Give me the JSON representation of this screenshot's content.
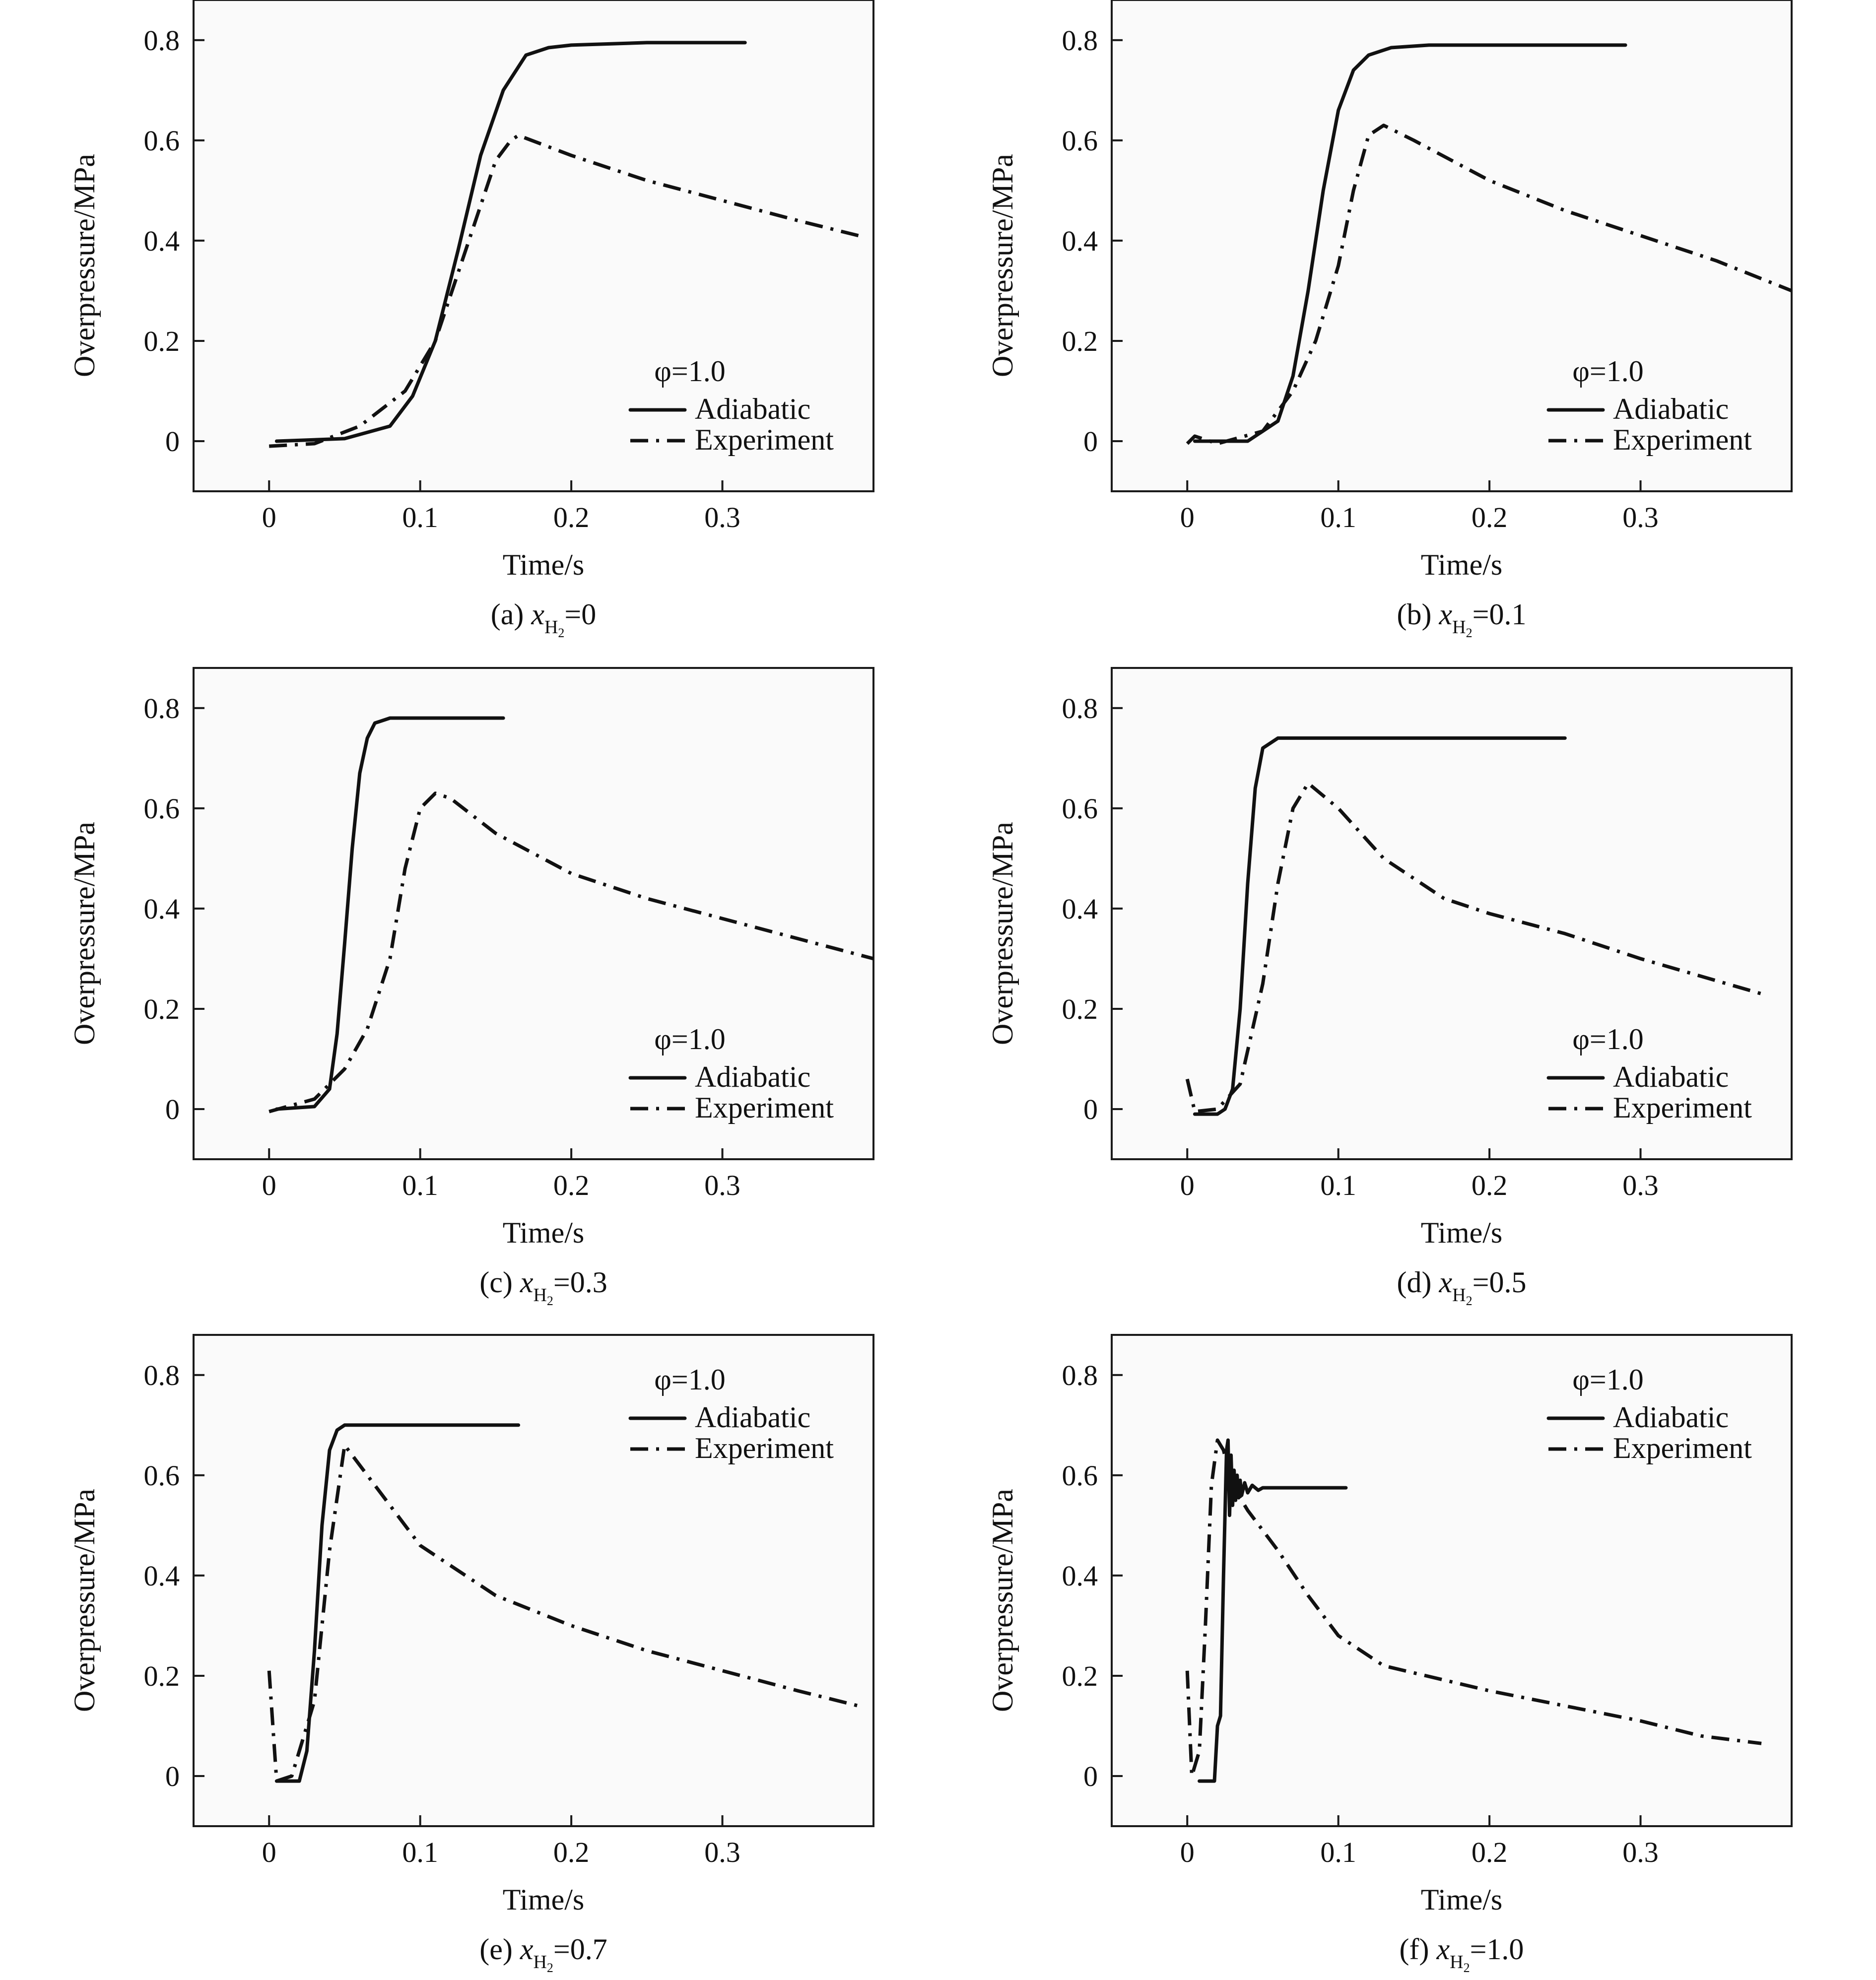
{
  "chart_data": [
    {
      "type": "line",
      "caption": {
        "prefix": "(a) ",
        "var": "x",
        "sub": "H",
        "subsub": "2",
        "value": "=0"
      },
      "xlabel": "Time/s",
      "ylabel": "Overpressure/MPa",
      "xlim": [
        -0.05,
        0.4
      ],
      "ylim": [
        -0.1,
        0.88
      ],
      "xticks": [
        0,
        0.1,
        0.2,
        0.3
      ],
      "xtick_labels": [
        "0",
        "0.1",
        "0.2",
        "0.3"
      ],
      "yticks": [
        0,
        0.2,
        0.4,
        0.6,
        0.8
      ],
      "ytick_labels": [
        "0",
        "0.2",
        "0.4",
        "0.6",
        "0.8"
      ],
      "legend": {
        "title": "φ=1.0",
        "placement": "lower-right",
        "entries": [
          "Adiabatic",
          "Experiment"
        ]
      },
      "series": [
        {
          "name": "Adiabatic",
          "style": "solid",
          "x": [
            0.005,
            0.05,
            0.08,
            0.095,
            0.11,
            0.125,
            0.14,
            0.155,
            0.17,
            0.185,
            0.2,
            0.25,
            0.315
          ],
          "y": [
            0.0,
            0.005,
            0.03,
            0.09,
            0.2,
            0.38,
            0.57,
            0.7,
            0.77,
            0.785,
            0.79,
            0.795,
            0.795
          ]
        },
        {
          "name": "Experiment",
          "style": "dashdot",
          "x": [
            0.0,
            0.03,
            0.06,
            0.09,
            0.11,
            0.13,
            0.15,
            0.16,
            0.165,
            0.2,
            0.25,
            0.3,
            0.35,
            0.39
          ],
          "y": [
            -0.01,
            -0.005,
            0.03,
            0.1,
            0.2,
            0.38,
            0.56,
            0.6,
            0.61,
            0.57,
            0.52,
            0.48,
            0.44,
            0.41
          ]
        }
      ]
    },
    {
      "type": "line",
      "caption": {
        "prefix": "(b) ",
        "var": "x",
        "sub": "H",
        "subsub": "2",
        "value": "=0.1"
      },
      "xlabel": "Time/s",
      "ylabel": "Overpressure/MPa",
      "xlim": [
        -0.05,
        0.4
      ],
      "ylim": [
        -0.1,
        0.88
      ],
      "xticks": [
        0,
        0.1,
        0.2,
        0.3
      ],
      "xtick_labels": [
        "0",
        "0.1",
        "0.2",
        "0.3"
      ],
      "yticks": [
        0,
        0.2,
        0.4,
        0.6,
        0.8
      ],
      "ytick_labels": [
        "0",
        "0.2",
        "0.4",
        "0.6",
        "0.8"
      ],
      "legend": {
        "title": "φ=1.0",
        "placement": "lower-right",
        "entries": [
          "Adiabatic",
          "Experiment"
        ]
      },
      "series": [
        {
          "name": "Adiabatic",
          "style": "solid",
          "x": [
            0.005,
            0.04,
            0.06,
            0.07,
            0.08,
            0.09,
            0.1,
            0.11,
            0.12,
            0.135,
            0.16,
            0.2,
            0.29
          ],
          "y": [
            0.0,
            0.0,
            0.04,
            0.13,
            0.3,
            0.5,
            0.66,
            0.74,
            0.77,
            0.785,
            0.79,
            0.79,
            0.79
          ]
        },
        {
          "name": "Experiment",
          "style": "dashdot",
          "x": [
            0.0,
            0.005,
            0.02,
            0.05,
            0.07,
            0.085,
            0.1,
            0.11,
            0.12,
            0.13,
            0.15,
            0.2,
            0.25,
            0.3,
            0.35,
            0.4
          ],
          "y": [
            -0.005,
            0.01,
            -0.005,
            0.02,
            0.1,
            0.2,
            0.35,
            0.5,
            0.61,
            0.63,
            0.6,
            0.52,
            0.46,
            0.41,
            0.36,
            0.3
          ]
        }
      ]
    },
    {
      "type": "line",
      "caption": {
        "prefix": "(c) ",
        "var": "x",
        "sub": "H",
        "subsub": "2",
        "value": "=0.3"
      },
      "xlabel": "Time/s",
      "ylabel": "Overpressure/MPa",
      "xlim": [
        -0.05,
        0.4
      ],
      "ylim": [
        -0.1,
        0.88
      ],
      "xticks": [
        0,
        0.1,
        0.2,
        0.3
      ],
      "xtick_labels": [
        "0",
        "0.1",
        "0.2",
        "0.3"
      ],
      "yticks": [
        0,
        0.2,
        0.4,
        0.6,
        0.8
      ],
      "ytick_labels": [
        "0",
        "0.2",
        "0.4",
        "0.6",
        "0.8"
      ],
      "legend": {
        "title": "φ=1.0",
        "placement": "lower-right",
        "entries": [
          "Adiabatic",
          "Experiment"
        ]
      },
      "series": [
        {
          "name": "Adiabatic",
          "style": "solid",
          "x": [
            0.005,
            0.03,
            0.04,
            0.045,
            0.05,
            0.055,
            0.06,
            0.065,
            0.07,
            0.08,
            0.1,
            0.155
          ],
          "y": [
            0.0,
            0.005,
            0.04,
            0.15,
            0.33,
            0.52,
            0.67,
            0.74,
            0.77,
            0.78,
            0.78,
            0.78
          ]
        },
        {
          "name": "Experiment",
          "style": "dashdot",
          "x": [
            0.0,
            0.03,
            0.05,
            0.065,
            0.08,
            0.09,
            0.1,
            0.11,
            0.12,
            0.15,
            0.2,
            0.25,
            0.3,
            0.35,
            0.4
          ],
          "y": [
            -0.005,
            0.02,
            0.08,
            0.16,
            0.3,
            0.48,
            0.6,
            0.63,
            0.62,
            0.55,
            0.47,
            0.42,
            0.38,
            0.34,
            0.3
          ]
        }
      ]
    },
    {
      "type": "line",
      "caption": {
        "prefix": "(d) ",
        "var": "x",
        "sub": "H",
        "subsub": "2",
        "value": "=0.5"
      },
      "xlabel": "Time/s",
      "ylabel": "Overpressure/MPa",
      "xlim": [
        -0.05,
        0.4
      ],
      "ylim": [
        -0.1,
        0.88
      ],
      "xticks": [
        0,
        0.1,
        0.2,
        0.3
      ],
      "xtick_labels": [
        "0",
        "0.1",
        "0.2",
        "0.3"
      ],
      "yticks": [
        0,
        0.2,
        0.4,
        0.6,
        0.8
      ],
      "ytick_labels": [
        "0",
        "0.2",
        "0.4",
        "0.6",
        "0.8"
      ],
      "legend": {
        "title": "φ=1.0",
        "placement": "lower-right",
        "entries": [
          "Adiabatic",
          "Experiment"
        ]
      },
      "series": [
        {
          "name": "Adiabatic",
          "style": "solid",
          "x": [
            0.005,
            0.02,
            0.025,
            0.03,
            0.035,
            0.04,
            0.045,
            0.05,
            0.06,
            0.1,
            0.25
          ],
          "y": [
            -0.01,
            -0.01,
            0.0,
            0.04,
            0.2,
            0.45,
            0.64,
            0.72,
            0.74,
            0.74,
            0.74
          ]
        },
        {
          "name": "Experiment",
          "style": "dashdot",
          "x": [
            0.0,
            0.005,
            0.02,
            0.035,
            0.05,
            0.06,
            0.07,
            0.08,
            0.1,
            0.13,
            0.17,
            0.2,
            0.25,
            0.3,
            0.38
          ],
          "y": [
            0.06,
            -0.005,
            0.0,
            0.05,
            0.25,
            0.45,
            0.6,
            0.65,
            0.6,
            0.5,
            0.42,
            0.39,
            0.35,
            0.3,
            0.23
          ]
        }
      ]
    },
    {
      "type": "line",
      "caption": {
        "prefix": "(e) ",
        "var": "x",
        "sub": "H",
        "subsub": "2",
        "value": "=0.7"
      },
      "xlabel": "Time/s",
      "ylabel": "Overpressure/MPa",
      "xlim": [
        -0.05,
        0.4
      ],
      "ylim": [
        -0.1,
        0.88
      ],
      "xticks": [
        0,
        0.1,
        0.2,
        0.3
      ],
      "xtick_labels": [
        "0",
        "0.1",
        "0.2",
        "0.3"
      ],
      "yticks": [
        0,
        0.2,
        0.4,
        0.6,
        0.8
      ],
      "ytick_labels": [
        "0",
        "0.2",
        "0.4",
        "0.6",
        "0.8"
      ],
      "legend": {
        "title": "φ=1.0",
        "placement": "top-right",
        "entries": [
          "Adiabatic",
          "Experiment"
        ]
      },
      "series": [
        {
          "name": "Adiabatic",
          "style": "solid",
          "x": [
            0.005,
            0.02,
            0.025,
            0.03,
            0.035,
            0.04,
            0.045,
            0.05,
            0.1,
            0.165
          ],
          "y": [
            -0.01,
            -0.01,
            0.05,
            0.25,
            0.5,
            0.65,
            0.69,
            0.7,
            0.7,
            0.7
          ]
        },
        {
          "name": "Experiment",
          "style": "dashdot",
          "x": [
            0.0,
            0.005,
            0.015,
            0.03,
            0.04,
            0.05,
            0.07,
            0.1,
            0.15,
            0.2,
            0.25,
            0.3,
            0.35,
            0.39
          ],
          "y": [
            0.21,
            -0.01,
            0.0,
            0.15,
            0.45,
            0.66,
            0.58,
            0.46,
            0.36,
            0.3,
            0.25,
            0.21,
            0.17,
            0.14
          ]
        }
      ]
    },
    {
      "type": "line",
      "caption": {
        "prefix": "(f) ",
        "var": "x",
        "sub": "H",
        "subsub": "2",
        "value": "=1.0"
      },
      "xlabel": "Time/s",
      "ylabel": "Overpressure/MPa",
      "xlim": [
        -0.05,
        0.4
      ],
      "ylim": [
        -0.1,
        0.88
      ],
      "xticks": [
        0,
        0.1,
        0.2,
        0.3
      ],
      "xtick_labels": [
        "0",
        "0.1",
        "0.2",
        "0.3"
      ],
      "yticks": [
        0,
        0.2,
        0.4,
        0.6,
        0.8
      ],
      "ytick_labels": [
        "0",
        "0.2",
        "0.4",
        "0.6",
        "0.8"
      ],
      "legend": {
        "title": "φ=1.0",
        "placement": "top-right",
        "entries": [
          "Adiabatic",
          "Experiment"
        ]
      },
      "series": [
        {
          "name": "Adiabatic",
          "style": "solid",
          "x": [
            0.008,
            0.018,
            0.02,
            0.022,
            0.024,
            0.026,
            0.027,
            0.028,
            0.029,
            0.03,
            0.031,
            0.032,
            0.033,
            0.034,
            0.035,
            0.036,
            0.038,
            0.04,
            0.043,
            0.047,
            0.05,
            0.06,
            0.105
          ],
          "y": [
            -0.01,
            -0.01,
            0.1,
            0.12,
            0.4,
            0.65,
            0.67,
            0.52,
            0.64,
            0.54,
            0.61,
            0.55,
            0.6,
            0.555,
            0.59,
            0.56,
            0.585,
            0.565,
            0.58,
            0.57,
            0.575,
            0.575,
            0.575
          ]
        },
        {
          "name": "Experiment",
          "style": "dashdot",
          "x": [
            0.0,
            0.003,
            0.008,
            0.012,
            0.016,
            0.02,
            0.024,
            0.028,
            0.032,
            0.04,
            0.06,
            0.08,
            0.1,
            0.13,
            0.2,
            0.25,
            0.3,
            0.34,
            0.38
          ],
          "y": [
            0.21,
            0.0,
            0.05,
            0.3,
            0.58,
            0.67,
            0.65,
            0.6,
            0.57,
            0.53,
            0.45,
            0.36,
            0.28,
            0.22,
            0.17,
            0.14,
            0.11,
            0.08,
            0.065
          ]
        }
      ]
    }
  ]
}
